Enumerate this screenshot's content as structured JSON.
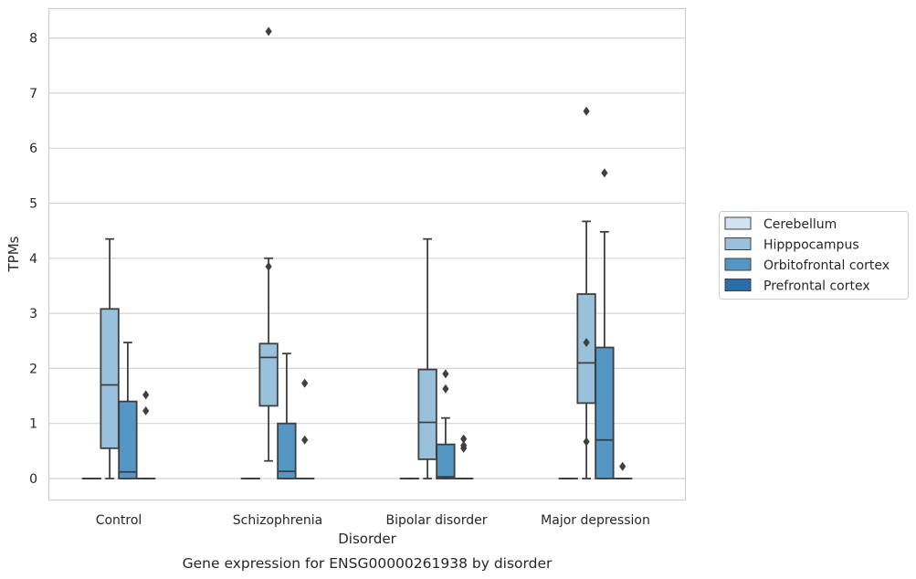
{
  "caption": "Gene expression for ENSG00000261938 by disorder",
  "chart_data": {
    "type": "boxplot",
    "title": "",
    "xlabel": "Disorder",
    "ylabel": "TPMs",
    "ylim": [
      -0.4,
      8.5
    ],
    "yticks": [
      0,
      1,
      2,
      3,
      4,
      5,
      6,
      7,
      8
    ],
    "categories": [
      "Control",
      "Schizophrenia",
      "Bipolar disorder",
      "Major depression"
    ],
    "grid": "horizontal",
    "legend_position": "right",
    "series": [
      {
        "name": "Cerebellum",
        "color": "#d1e2f1",
        "boxes": [
          {
            "min": 0,
            "q1": 0,
            "median": 0,
            "q3": 0,
            "max": 0,
            "outliers": []
          },
          {
            "min": 0,
            "q1": 0,
            "median": 0,
            "q3": 0,
            "max": 0,
            "outliers": []
          },
          {
            "min": 0,
            "q1": 0,
            "median": 0,
            "q3": 0,
            "max": 0,
            "outliers": []
          },
          {
            "min": 0,
            "q1": 0,
            "median": 0,
            "q3": 0,
            "max": 0,
            "outliers": []
          }
        ]
      },
      {
        "name": "Hipppocampus",
        "color": "#9ac1dc",
        "boxes": [
          {
            "min": 0,
            "q1": 0.55,
            "median": 1.7,
            "q3": 3.08,
            "max": 4.35,
            "outliers": []
          },
          {
            "min": 0.32,
            "q1": 1.32,
            "median": 2.2,
            "q3": 2.45,
            "max": 4.0,
            "outliers": [
              3.85,
              8.12
            ]
          },
          {
            "min": 0,
            "q1": 0.35,
            "median": 1.02,
            "q3": 1.98,
            "max": 4.35,
            "outliers": []
          },
          {
            "min": 0,
            "q1": 1.37,
            "median": 2.1,
            "q3": 3.35,
            "max": 4.67,
            "outliers": [
              2.47,
              0.67,
              6.67
            ]
          }
        ]
      },
      {
        "name": "Orbitofrontal cortex",
        "color": "#5496c4",
        "boxes": [
          {
            "min": 0,
            "q1": 0,
            "median": 0.12,
            "q3": 1.4,
            "max": 2.47,
            "outliers": []
          },
          {
            "min": 0,
            "q1": 0,
            "median": 0.13,
            "q3": 1.0,
            "max": 2.27,
            "outliers": []
          },
          {
            "min": 0,
            "q1": 0,
            "median": 0.03,
            "q3": 0.62,
            "max": 1.1,
            "outliers": [
              1.9,
              1.63
            ]
          },
          {
            "min": 0,
            "q1": 0,
            "median": 0.7,
            "q3": 2.38,
            "max": 4.48,
            "outliers": [
              5.55
            ]
          }
        ]
      },
      {
        "name": "Prefrontal cortex",
        "color": "#2c6ea8",
        "boxes": [
          {
            "min": 0,
            "q1": 0,
            "median": 0,
            "q3": 0,
            "max": 0,
            "outliers": [
              1.52,
              1.23
            ]
          },
          {
            "min": 0,
            "q1": 0,
            "median": 0,
            "q3": 0,
            "max": 0,
            "outliers": [
              1.73,
              0.7
            ]
          },
          {
            "min": 0,
            "q1": 0,
            "median": 0,
            "q3": 0,
            "max": 0,
            "outliers": [
              0.72,
              0.6,
              0.55
            ]
          },
          {
            "min": 0,
            "q1": 0,
            "median": 0,
            "q3": 0,
            "max": 0,
            "outliers": [
              0.22
            ]
          }
        ]
      }
    ]
  }
}
